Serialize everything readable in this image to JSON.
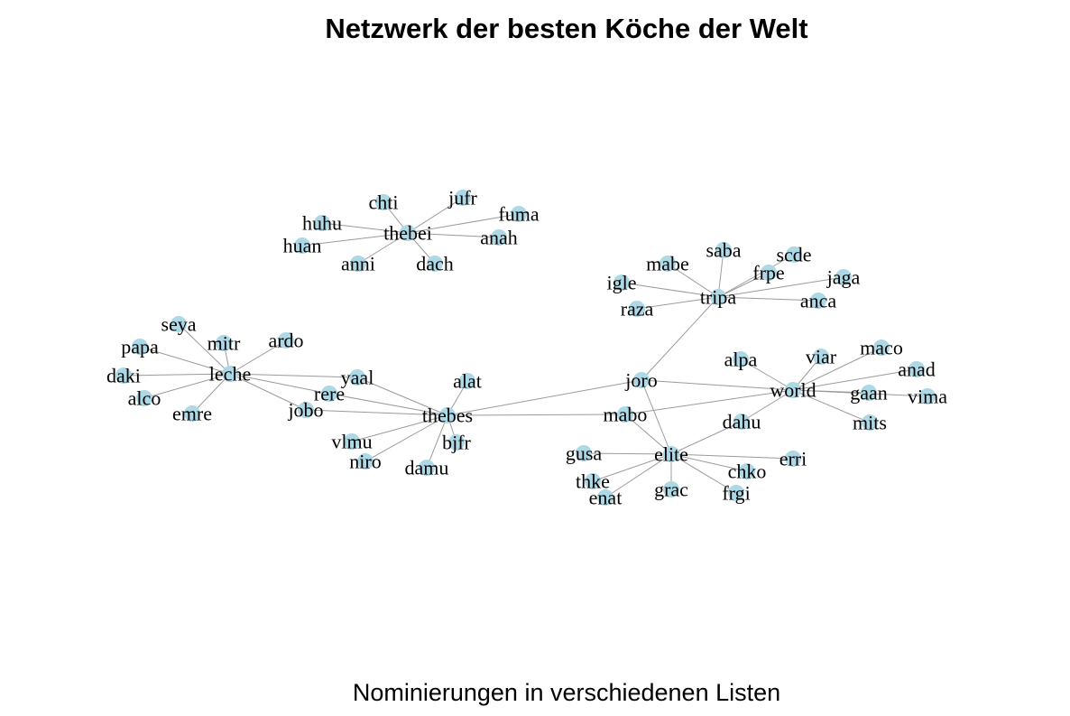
{
  "title": "Netzwerk der besten Köche der Welt",
  "subtitle": "Nominierungen in verschiedenen Listen",
  "colors": {
    "node": "#add8e6",
    "edge": "#9b9b9b",
    "label": "#000000"
  },
  "nodes": [
    "thebei",
    "chti",
    "jufr",
    "fuma",
    "huhu",
    "huan",
    "anni",
    "dach",
    "anah",
    "tripa",
    "saba",
    "scde",
    "mabe",
    "frpe",
    "jaga",
    "igle",
    "raza",
    "anca",
    "leche",
    "seya",
    "papa",
    "mitr",
    "ardo",
    "daki",
    "alco",
    "emre",
    "yaal",
    "rere",
    "jobo",
    "thebes",
    "alat",
    "vlmu",
    "niro",
    "bjfr",
    "damu",
    "joro",
    "mabo",
    "world",
    "alpa",
    "viar",
    "maco",
    "anad",
    "gaan",
    "vima",
    "mits",
    "dahu",
    "elite",
    "gusa",
    "thke",
    "enat",
    "grac",
    "chko",
    "frgi",
    "erri"
  ],
  "edges": [
    [
      "thebei",
      "chti"
    ],
    [
      "thebei",
      "jufr"
    ],
    [
      "thebei",
      "fuma"
    ],
    [
      "thebei",
      "huhu"
    ],
    [
      "thebei",
      "huan"
    ],
    [
      "thebei",
      "anni"
    ],
    [
      "thebei",
      "dach"
    ],
    [
      "thebei",
      "anah"
    ],
    [
      "tripa",
      "saba"
    ],
    [
      "tripa",
      "scde"
    ],
    [
      "tripa",
      "mabe"
    ],
    [
      "tripa",
      "frpe"
    ],
    [
      "tripa",
      "jaga"
    ],
    [
      "tripa",
      "igle"
    ],
    [
      "tripa",
      "raza"
    ],
    [
      "tripa",
      "anca"
    ],
    [
      "leche",
      "seya"
    ],
    [
      "leche",
      "papa"
    ],
    [
      "leche",
      "mitr"
    ],
    [
      "leche",
      "ardo"
    ],
    [
      "leche",
      "daki"
    ],
    [
      "leche",
      "alco"
    ],
    [
      "leche",
      "emre"
    ],
    [
      "leche",
      "yaal"
    ],
    [
      "leche",
      "rere"
    ],
    [
      "leche",
      "jobo"
    ],
    [
      "thebes",
      "yaal"
    ],
    [
      "thebes",
      "rere"
    ],
    [
      "thebes",
      "jobo"
    ],
    [
      "thebes",
      "alat"
    ],
    [
      "thebes",
      "vlmu"
    ],
    [
      "thebes",
      "niro"
    ],
    [
      "thebes",
      "bjfr"
    ],
    [
      "thebes",
      "damu"
    ],
    [
      "thebes",
      "joro"
    ],
    [
      "thebes",
      "mabo"
    ],
    [
      "joro",
      "tripa"
    ],
    [
      "joro",
      "world"
    ],
    [
      "joro",
      "elite"
    ],
    [
      "mabo",
      "world"
    ],
    [
      "mabo",
      "elite"
    ],
    [
      "world",
      "alpa"
    ],
    [
      "world",
      "viar"
    ],
    [
      "world",
      "maco"
    ],
    [
      "world",
      "anad"
    ],
    [
      "world",
      "gaan"
    ],
    [
      "world",
      "vima"
    ],
    [
      "world",
      "mits"
    ],
    [
      "world",
      "dahu"
    ],
    [
      "elite",
      "dahu"
    ],
    [
      "elite",
      "gusa"
    ],
    [
      "elite",
      "thke"
    ],
    [
      "elite",
      "enat"
    ],
    [
      "elite",
      "grac"
    ],
    [
      "elite",
      "chko"
    ],
    [
      "elite",
      "frgi"
    ],
    [
      "elite",
      "erri"
    ]
  ]
}
